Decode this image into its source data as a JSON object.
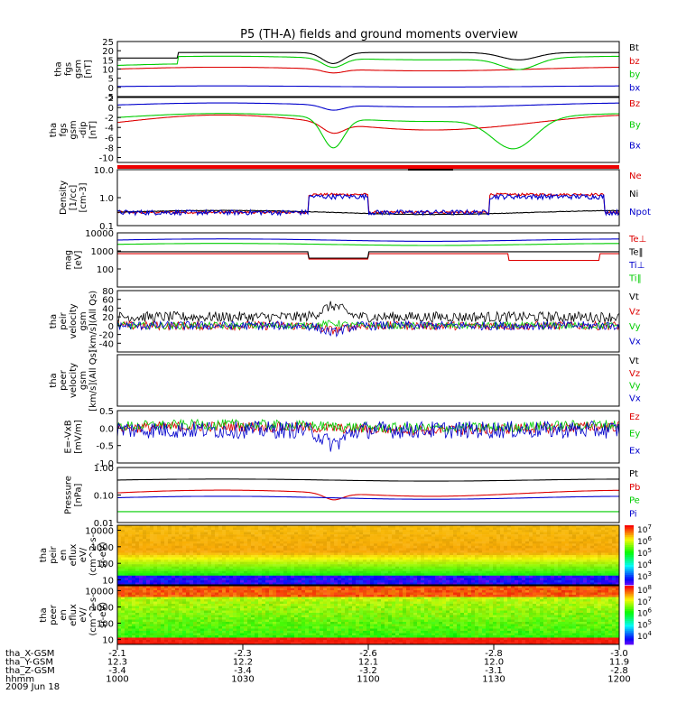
{
  "chart_data": {
    "type": "line",
    "title": "P5 (TH-A) fields and ground moments overview",
    "date_label": "2009 Jun 18",
    "panels": [
      {
        "ylabel": [
          "tha",
          "fgs",
          "gsm",
          "[nT]"
        ],
        "ylim": [
          -5,
          25
        ],
        "scale": "linear",
        "ticks": [
          "25",
          "20",
          "15",
          "10",
          "5",
          "0",
          "-5"
        ],
        "series": [
          {
            "name": "Bt",
            "color": "#000000"
          },
          {
            "name": "bz",
            "color": "#dd0000"
          },
          {
            "name": "by",
            "color": "#00cc00"
          },
          {
            "name": "bx",
            "color": "#0000cc"
          }
        ]
      },
      {
        "ylabel": [
          "tha",
          "fgs",
          "gsm",
          "-dip",
          "[nT]"
        ],
        "ylim": [
          -11,
          2
        ],
        "scale": "linear",
        "ticks": [
          "2",
          "0",
          "-2",
          "-4",
          "-6",
          "-8",
          "-10"
        ],
        "series": [
          {
            "name": "Bz",
            "color": "#dd0000"
          },
          {
            "name": "By",
            "color": "#00cc00"
          },
          {
            "name": "Bx",
            "color": "#0000cc"
          }
        ]
      },
      {
        "ylabel": [
          "Density",
          "[1/cc]",
          "[cm-3]"
        ],
        "ylim": [
          0.1,
          10
        ],
        "scale": "log",
        "ticks": [
          "10.0",
          "1.0",
          "0.1"
        ],
        "series": [
          {
            "name": "Ne",
            "color": "#dd0000"
          },
          {
            "name": "Ni",
            "color": "#000000"
          },
          {
            "name": "Npot",
            "color": "#0000cc"
          }
        ]
      },
      {
        "ylabel": [
          "mag",
          "[eV]"
        ],
        "ylim": [
          10,
          10000
        ],
        "scale": "log",
        "ticks": [
          "10000",
          "1000",
          "100"
        ],
        "series": [
          {
            "name": "Te⊥",
            "color": "#dd0000"
          },
          {
            "name": "Te‖",
            "color": "#000000"
          },
          {
            "name": "Ti⊥",
            "color": "#0000cc"
          },
          {
            "name": "Ti‖",
            "color": "#00cc00"
          }
        ]
      },
      {
        "ylabel": [
          "tha",
          "peir",
          "velocity",
          "gsm",
          "[km/s](All Qs)"
        ],
        "ylim": [
          -60,
          80
        ],
        "scale": "linear",
        "ticks": [
          "80",
          "60",
          "40",
          "20",
          "0",
          "-20",
          "-40"
        ],
        "series": [
          {
            "name": "Vt",
            "color": "#000000"
          },
          {
            "name": "Vz",
            "color": "#dd0000"
          },
          {
            "name": "Vy",
            "color": "#00cc00"
          },
          {
            "name": "Vx",
            "color": "#0000cc"
          }
        ]
      },
      {
        "ylabel": [
          "tha",
          "peer",
          "velocity",
          "gsm",
          "[km/s](All Qs)"
        ],
        "ylim": [
          0,
          1
        ],
        "scale": "linear",
        "ticks": [],
        "series": [
          {
            "name": "Vt",
            "color": "#000000"
          },
          {
            "name": "Vz",
            "color": "#dd0000"
          },
          {
            "name": "Vy",
            "color": "#00cc00"
          },
          {
            "name": "Vx",
            "color": "#0000cc"
          }
        ]
      },
      {
        "ylabel": [
          "E=-VxB",
          "[mV/m]"
        ],
        "ylim": [
          -1,
          0.5
        ],
        "scale": "linear",
        "ticks": [
          "0.5",
          "0.0",
          "-0.5",
          "-1.0"
        ],
        "series": [
          {
            "name": "Ez",
            "color": "#dd0000"
          },
          {
            "name": "Ey",
            "color": "#00cc00"
          },
          {
            "name": "Ex",
            "color": "#0000cc"
          }
        ]
      },
      {
        "ylabel": [
          "Pressure",
          "[nPa]"
        ],
        "ylim": [
          0.01,
          1
        ],
        "scale": "log",
        "ticks": [
          "1.00",
          "0.10",
          "0.01"
        ],
        "series": [
          {
            "name": "Pt",
            "color": "#000000"
          },
          {
            "name": "Pb",
            "color": "#dd0000"
          },
          {
            "name": "Pe",
            "color": "#00cc00"
          },
          {
            "name": "Pi",
            "color": "#0000cc"
          }
        ]
      },
      {
        "type": "heatmap",
        "ylabel": [
          "tha",
          "peir",
          "en",
          "eflux",
          "eV/",
          "(cm^2-s-",
          "sr-eV)"
        ],
        "ylim": [
          5,
          20000
        ],
        "scale": "log",
        "ticks": [
          "10000",
          "1000",
          "100",
          "10"
        ],
        "colorbar_ticks": [
          "10^7",
          "10^6",
          "10^5",
          "10^4",
          "10^3"
        ]
      },
      {
        "type": "heatmap",
        "ylabel": [
          "tha",
          "peer",
          "en",
          "eflux",
          "eV/",
          "(cm^2-s-",
          "sr-eV)"
        ],
        "ylim": [
          5,
          20000
        ],
        "scale": "log",
        "ticks": [
          "10000",
          "1000",
          "100",
          "10"
        ],
        "colorbar_ticks": [
          "10^8",
          "10^7",
          "10^6",
          "10^5",
          "10^4"
        ]
      }
    ],
    "x_axis": {
      "rows": [
        {
          "label": "tha_X-GSM",
          "values": [
            "-2.1",
            "-2.3",
            "-2.6",
            "-2.8",
            "-3.0"
          ]
        },
        {
          "label": "tha_Y-GSM",
          "values": [
            "12.3",
            "12.2",
            "12.1",
            "12.0",
            "11.9"
          ]
        },
        {
          "label": "tha_Z-GSM",
          "values": [
            "-3.4",
            "-3.4",
            "-3.2",
            "-3.1",
            "-2.8"
          ]
        },
        {
          "label": "hhmm",
          "values": [
            "1000",
            "1030",
            "1100",
            "1130",
            "1200"
          ]
        }
      ]
    }
  }
}
